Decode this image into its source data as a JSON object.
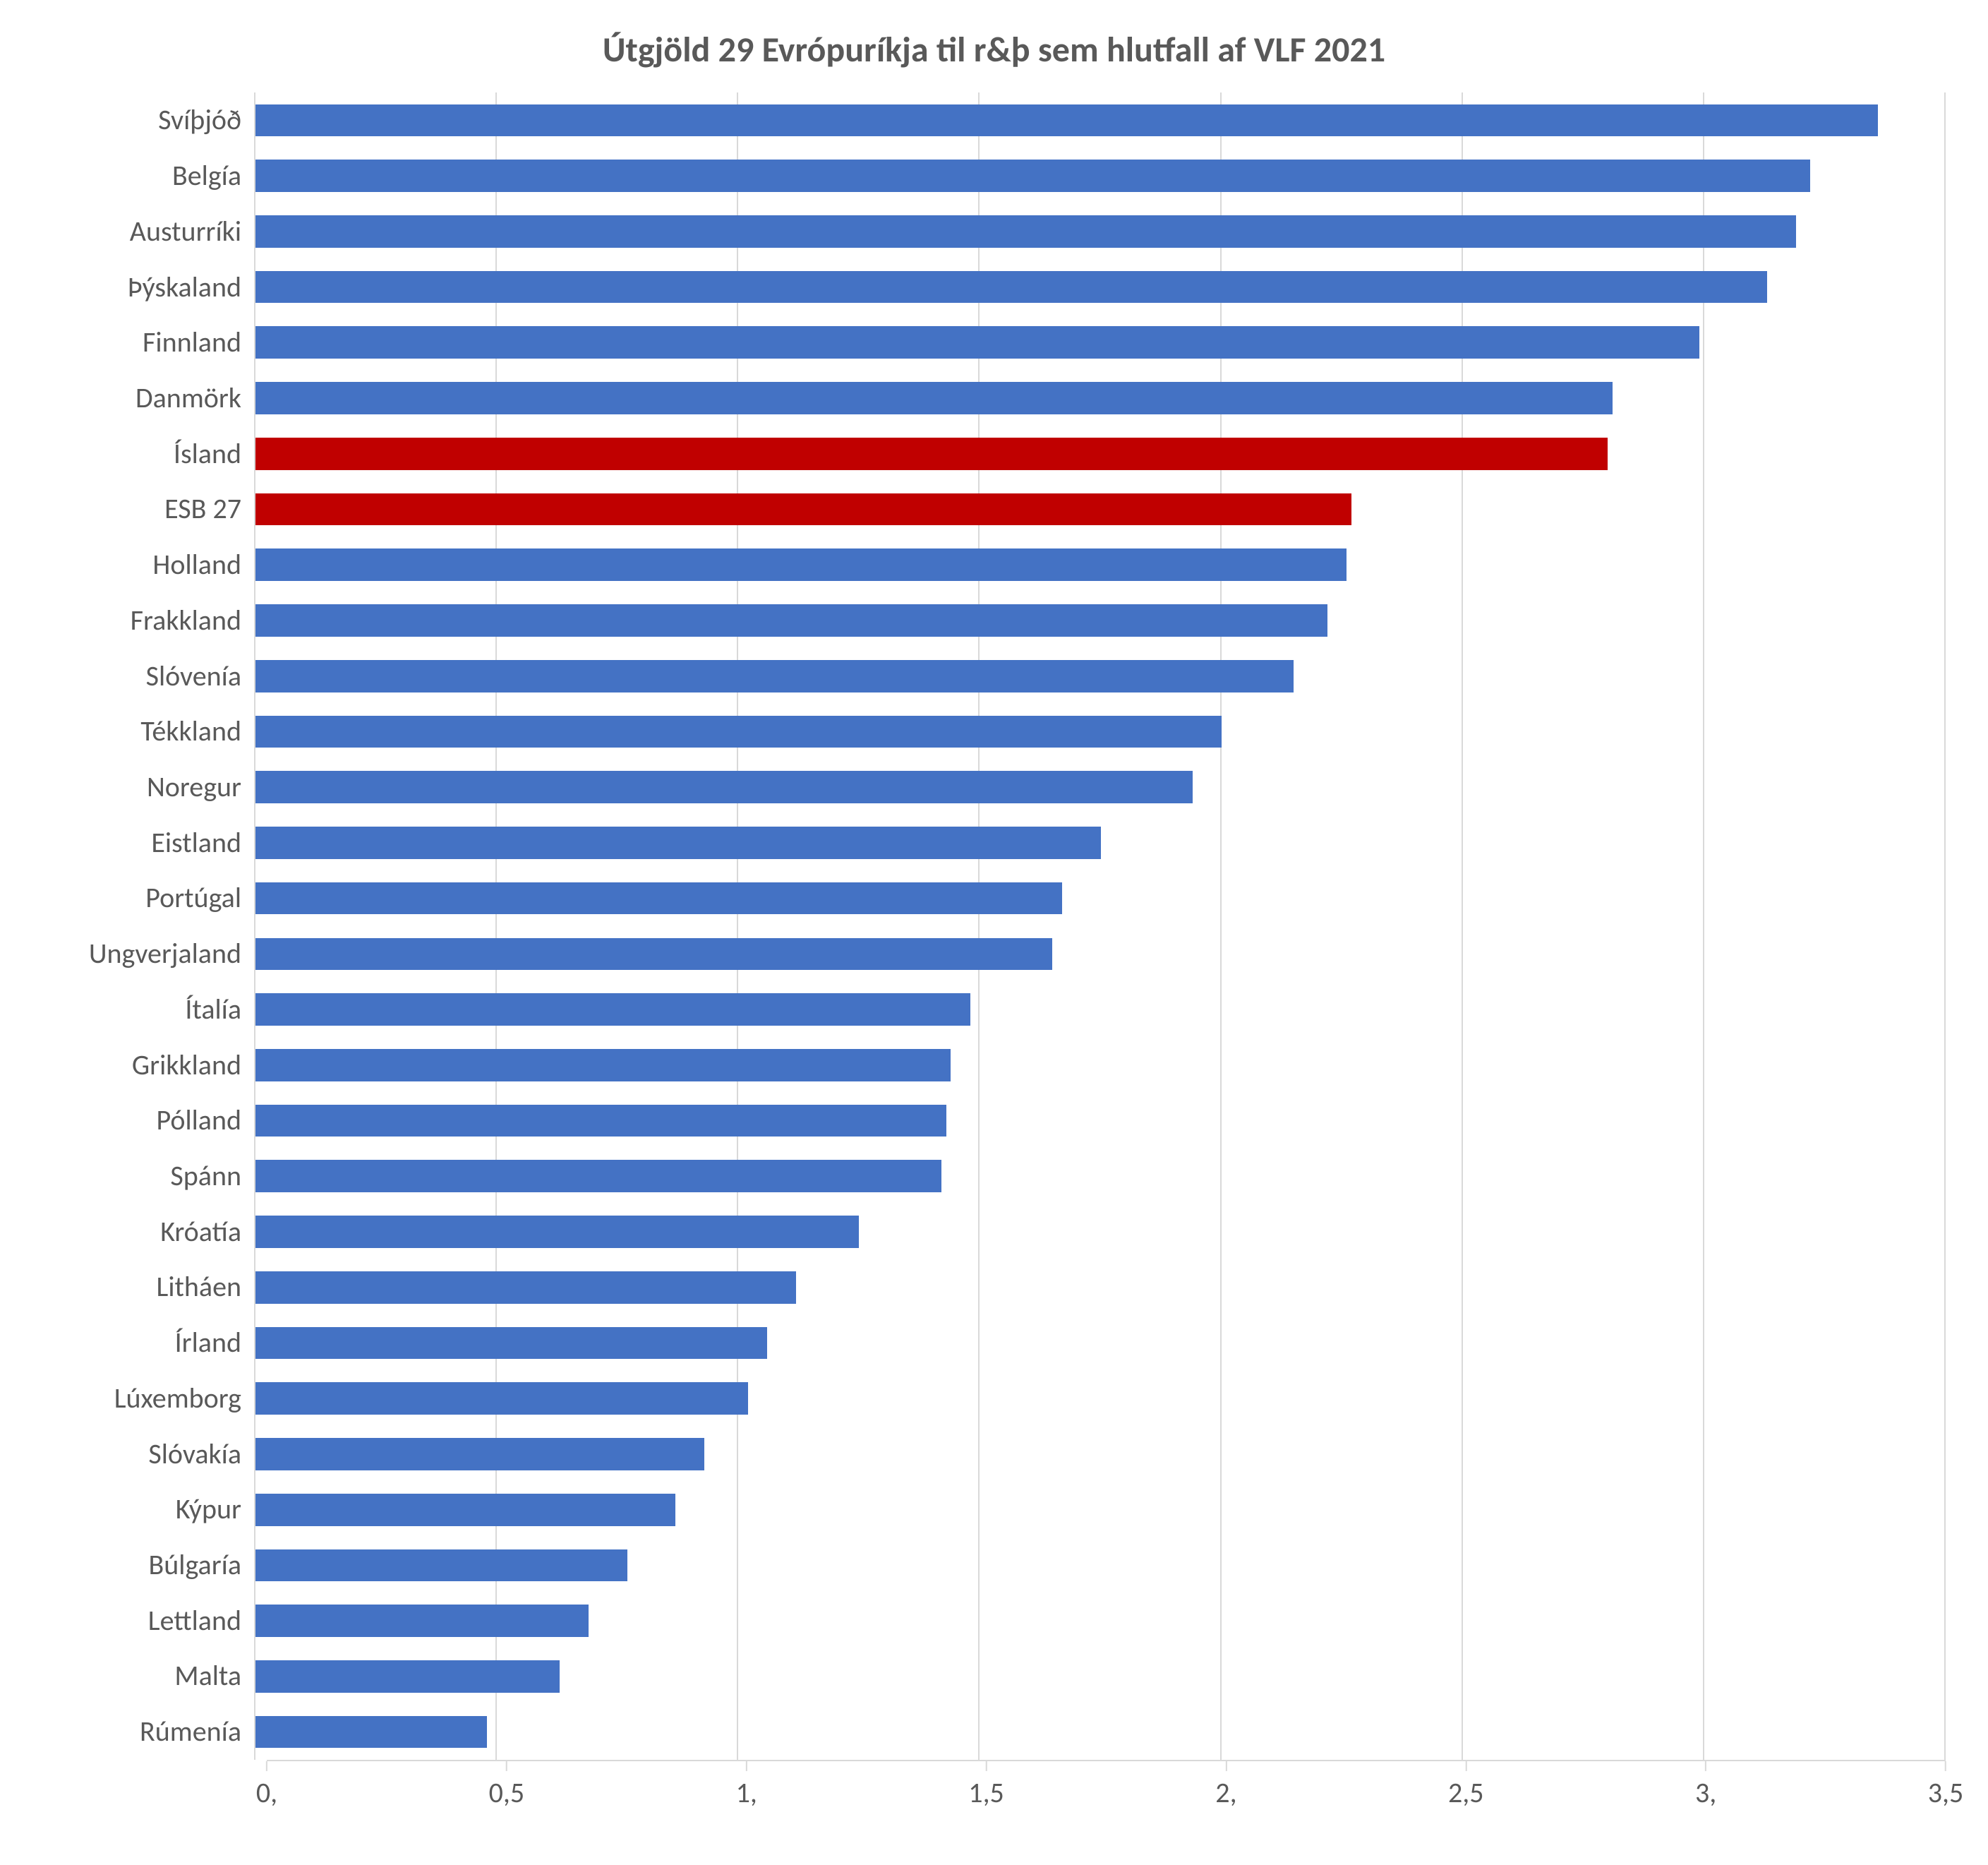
{
  "chart": {
    "type": "bar-horizontal",
    "title": "Útgjöld 29 Evrópuríkja til r&þ sem hlutfall af VLF 2021",
    "title_fontsize": 50,
    "title_color": "#595959",
    "label_fontsize": 40,
    "label_color": "#595959",
    "tick_fontsize": 40,
    "background_color": "#ffffff",
    "grid_color": "#d9d9d9",
    "axis_color": "#d9d9d9",
    "bar_default_color": "#4472c4",
    "bar_highlight_color": "#c00000",
    "xlim": [
      0,
      3.5
    ],
    "xtick_step": 0.5,
    "xtick_labels": [
      "0,",
      "0,5",
      "1,",
      "1,5",
      "2,",
      "2,5",
      "3,",
      "3,5"
    ],
    "bar_width_ratio": 0.58,
    "y_label_width": 300,
    "categories": [
      "Svíþjóð",
      "Belgía",
      "Austurríki",
      "Þýskaland",
      "Finnland",
      "Danmörk",
      "Ísland",
      "ESB 27",
      "Holland",
      "Frakkland",
      "Slóvenía",
      "Tékkland",
      "Noregur",
      "Eistland",
      "Portúgal",
      "Ungverjaland",
      "Ítalía",
      "Grikkland",
      "Pólland",
      "Spánn",
      "Króatía",
      "Litháen",
      "Írland",
      "Lúxemborg",
      "Slóvakía",
      "Kýpur",
      "Búlgaría",
      "Lettland",
      "Malta",
      "Rúmenía"
    ],
    "values": [
      3.36,
      3.22,
      3.19,
      3.13,
      2.99,
      2.81,
      2.8,
      2.27,
      2.26,
      2.22,
      2.15,
      2.0,
      1.94,
      1.75,
      1.67,
      1.65,
      1.48,
      1.44,
      1.43,
      1.42,
      1.25,
      1.12,
      1.06,
      1.02,
      0.93,
      0.87,
      0.77,
      0.69,
      0.63,
      0.48
    ],
    "highlight_indices": [
      6,
      7
    ]
  }
}
